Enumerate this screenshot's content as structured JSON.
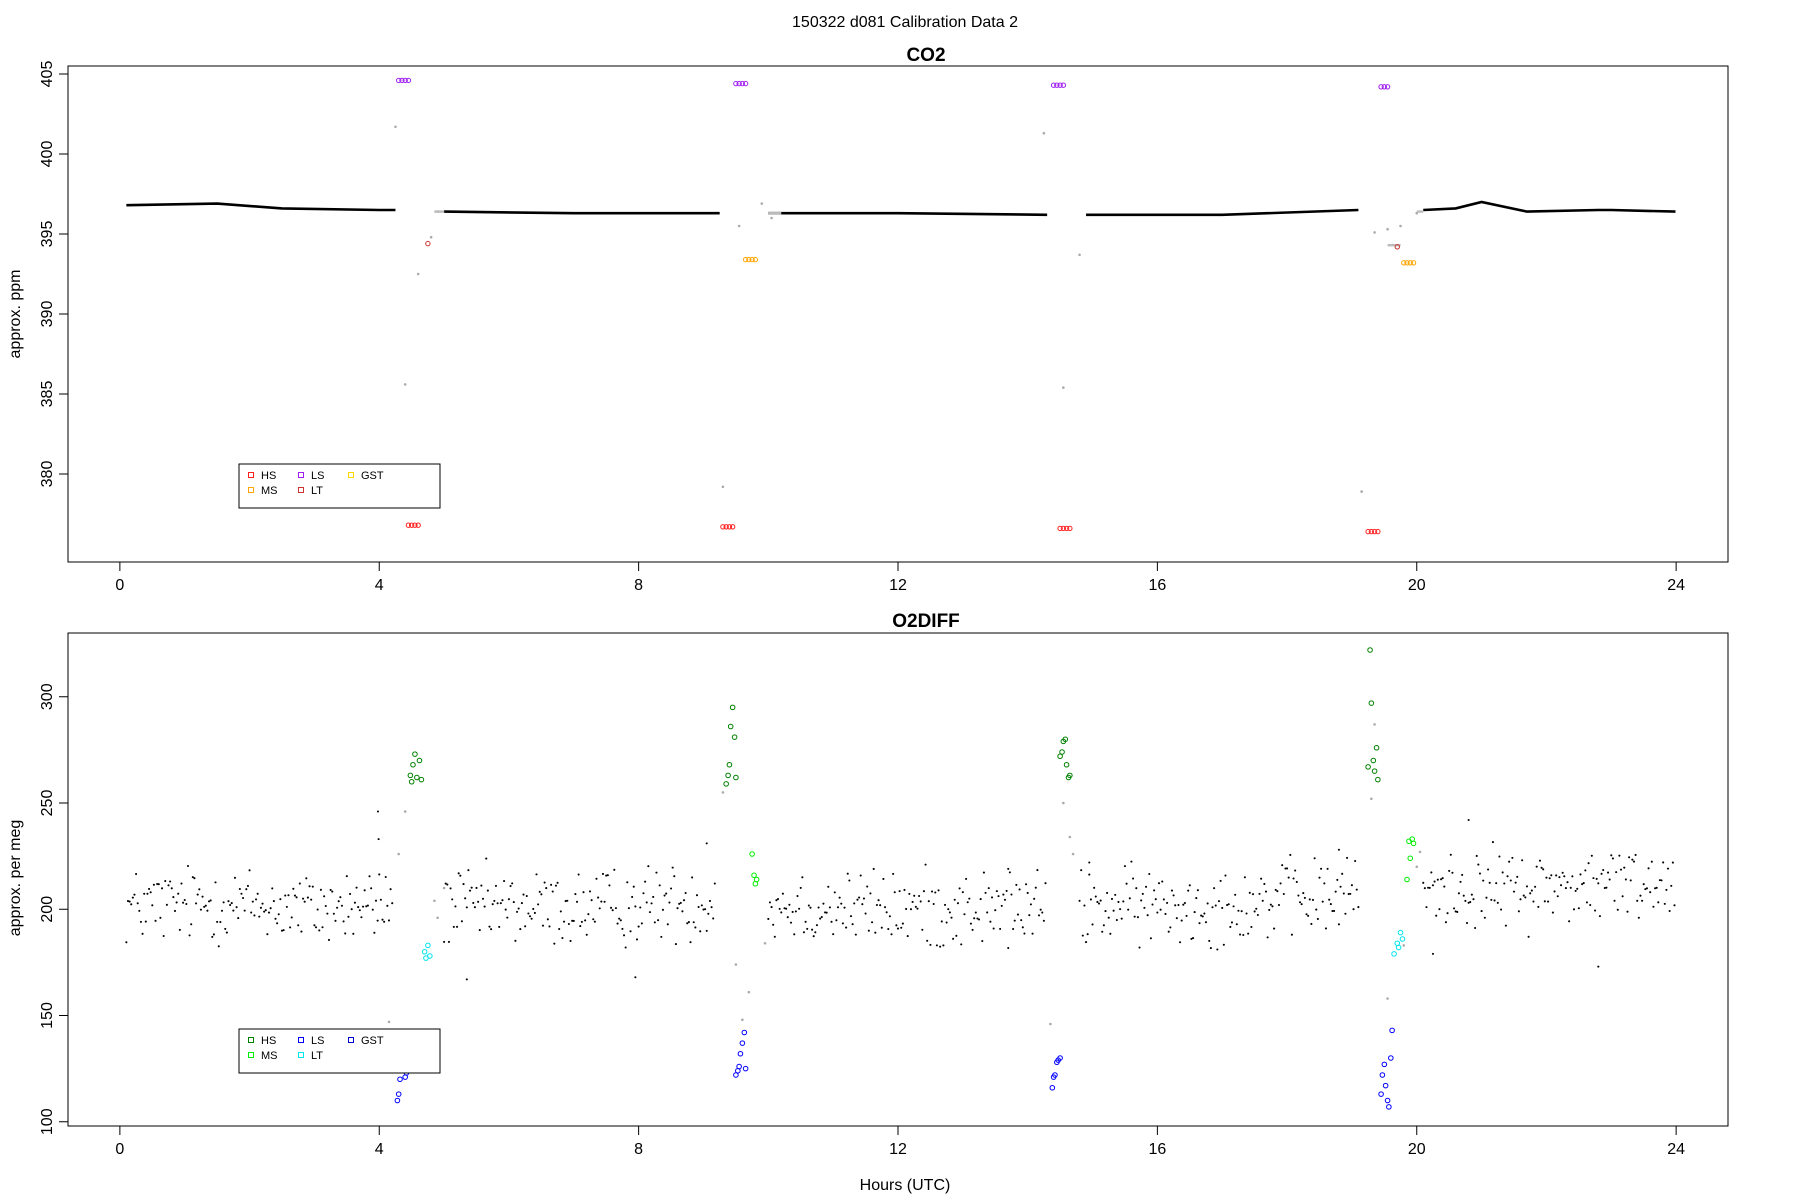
{
  "figure": {
    "title": "150322   d081   Calibration Data 2"
  },
  "chart_data": [
    {
      "type": "scatter",
      "title": "CO2",
      "xlabel": "",
      "ylabel": "approx. ppm",
      "xlim": [
        -0.8,
        24.8
      ],
      "ylim": [
        374.5,
        405.5
      ],
      "xticks": [
        0,
        4,
        8,
        12,
        16,
        20,
        24
      ],
      "yticks": [
        380,
        385,
        390,
        395,
        400,
        405
      ],
      "legend": {
        "position": "bottom-left",
        "entries": [
          {
            "name": "HS",
            "color": "#ff2020"
          },
          {
            "name": "MS",
            "color": "#ffa500"
          },
          {
            "name": "LS",
            "color": "#a020f0"
          },
          {
            "name": "LT",
            "color": "#cd3333"
          },
          {
            "name": "GST",
            "color": "#ffd700"
          }
        ]
      },
      "ambient": {
        "color": "#000000",
        "segments": [
          {
            "x": [
              0.1,
              1.5,
              2.5,
              4.0,
              4.25
            ],
            "y": [
              396.8,
              396.9,
              396.6,
              396.5,
              396.5
            ]
          },
          {
            "x": [
              5.0,
              7.0,
              9.25
            ],
            "y": [
              396.4,
              396.3,
              396.3
            ]
          },
          {
            "x": [
              10.0,
              12.0,
              14.3
            ],
            "y": [
              396.3,
              396.3,
              396.2
            ]
          },
          {
            "x": [
              14.9,
              17.0,
              19.1
            ],
            "y": [
              396.2,
              396.2,
              396.5
            ]
          },
          {
            "x": [
              20.1,
              20.6,
              21.0,
              21.7,
              22.8,
              23.0,
              23.99
            ],
            "y": [
              396.5,
              396.6,
              397.0,
              396.4,
              396.5,
              396.5,
              396.4
            ]
          }
        ]
      },
      "gray_points": [
        {
          "x": 4.25,
          "y": 401.7
        },
        {
          "x": 4.4,
          "y": 385.6
        },
        {
          "x": 4.6,
          "y": 392.5
        },
        {
          "x": 4.8,
          "y": 394.8
        },
        {
          "x": 4.9,
          "y": 396.4
        },
        {
          "x": 9.3,
          "y": 379.2
        },
        {
          "x": 9.55,
          "y": 395.5
        },
        {
          "x": 9.9,
          "y": 396.9
        },
        {
          "x": 10.05,
          "y": 396.0
        },
        {
          "x": 14.25,
          "y": 401.3
        },
        {
          "x": 14.55,
          "y": 385.4
        },
        {
          "x": 14.8,
          "y": 393.7
        },
        {
          "x": 19.15,
          "y": 378.9
        },
        {
          "x": 19.35,
          "y": 395.1
        },
        {
          "x": 19.55,
          "y": 395.3
        },
        {
          "x": 19.75,
          "y": 395.5
        },
        {
          "x": 20.0,
          "y": 396.3
        }
      ],
      "series": [
        {
          "name": "HS",
          "color": "#ff2020",
          "points": [
            {
              "x": 4.45,
              "y": 376.8
            },
            {
              "x": 4.5,
              "y": 376.8
            },
            {
              "x": 4.55,
              "y": 376.8
            },
            {
              "x": 4.6,
              "y": 376.8
            },
            {
              "x": 9.3,
              "y": 376.7
            },
            {
              "x": 9.35,
              "y": 376.7
            },
            {
              "x": 9.4,
              "y": 376.7
            },
            {
              "x": 9.45,
              "y": 376.7
            },
            {
              "x": 14.5,
              "y": 376.6
            },
            {
              "x": 14.55,
              "y": 376.6
            },
            {
              "x": 14.6,
              "y": 376.6
            },
            {
              "x": 14.65,
              "y": 376.6
            },
            {
              "x": 19.25,
              "y": 376.4
            },
            {
              "x": 19.3,
              "y": 376.4
            },
            {
              "x": 19.35,
              "y": 376.4
            },
            {
              "x": 19.4,
              "y": 376.4
            }
          ]
        },
        {
          "name": "MS",
          "color": "#ffa500",
          "points": [
            {
              "x": 9.65,
              "y": 393.4
            },
            {
              "x": 9.7,
              "y": 393.4
            },
            {
              "x": 9.75,
              "y": 393.4
            },
            {
              "x": 9.8,
              "y": 393.4
            },
            {
              "x": 19.8,
              "y": 393.2
            },
            {
              "x": 19.85,
              "y": 393.2
            },
            {
              "x": 19.9,
              "y": 393.2
            },
            {
              "x": 19.95,
              "y": 393.2
            }
          ]
        },
        {
          "name": "LS",
          "color": "#a020f0",
          "points": [
            {
              "x": 4.3,
              "y": 404.6
            },
            {
              "x": 4.35,
              "y": 404.6
            },
            {
              "x": 4.4,
              "y": 404.6
            },
            {
              "x": 4.45,
              "y": 404.6
            },
            {
              "x": 9.5,
              "y": 404.4
            },
            {
              "x": 9.55,
              "y": 404.4
            },
            {
              "x": 9.6,
              "y": 404.4
            },
            {
              "x": 9.65,
              "y": 404.4
            },
            {
              "x": 14.4,
              "y": 404.3
            },
            {
              "x": 14.45,
              "y": 404.3
            },
            {
              "x": 14.5,
              "y": 404.3
            },
            {
              "x": 14.55,
              "y": 404.3
            },
            {
              "x": 19.45,
              "y": 404.2
            },
            {
              "x": 19.5,
              "y": 404.2
            },
            {
              "x": 19.55,
              "y": 404.2
            }
          ]
        },
        {
          "name": "LT",
          "color": "#cd3333",
          "points": [
            {
              "x": 4.75,
              "y": 394.4
            },
            {
              "x": 19.7,
              "y": 394.2
            }
          ]
        },
        {
          "name": "GST",
          "color": "#ffd700",
          "points": []
        }
      ]
    },
    {
      "type": "scatter",
      "title": "O2DIFF",
      "xlabel": "Hours (UTC)",
      "ylabel": "approx. per meg",
      "xlim": [
        -0.8,
        24.8
      ],
      "ylim": [
        98,
        330
      ],
      "xticks": [
        0,
        4,
        8,
        12,
        16,
        20,
        24
      ],
      "yticks": [
        100,
        150,
        200,
        250,
        300
      ],
      "legend": {
        "position": "bottom-left",
        "entries": [
          {
            "name": "HS",
            "color": "#008000"
          },
          {
            "name": "MS",
            "color": "#00ee00"
          },
          {
            "name": "LS",
            "color": "#0000ff"
          },
          {
            "name": "LT",
            "color": "#00e5ee"
          },
          {
            "name": "GST",
            "color": "#0000cd"
          }
        ]
      },
      "ambient": {
        "color": "#000000",
        "noise": 9,
        "segments": [
          {
            "x": [
              0.1,
              1.5,
              3.0,
              4.2
            ],
            "y": [
              201,
              203,
              200,
              202
            ]
          },
          {
            "x": [
              5.0,
              7.0,
              9.2
            ],
            "y": [
              201,
              200,
              204
            ]
          },
          {
            "x": [
              10.0,
              12.0,
              14.3
            ],
            "y": [
              202,
              200,
              200
            ]
          },
          {
            "x": [
              14.8,
              17.0,
              19.1
            ],
            "y": [
              201,
              202,
              207
            ]
          },
          {
            "x": [
              20.1,
              22.0,
              23.99
            ],
            "y": [
              209,
              210,
              213
            ]
          }
        ],
        "outliers": [
          {
            "x": 3.98,
            "y": 246
          },
          {
            "x": 3.99,
            "y": 233
          },
          {
            "x": 9.05,
            "y": 231
          },
          {
            "x": 18.8,
            "y": 228
          },
          {
            "x": 20.8,
            "y": 242
          },
          {
            "x": 22.8,
            "y": 173
          },
          {
            "x": 5.35,
            "y": 167
          },
          {
            "x": 7.95,
            "y": 168
          },
          {
            "x": 20.25,
            "y": 179
          },
          {
            "x": 13.7,
            "y": 219
          },
          {
            "x": 14.95,
            "y": 222
          }
        ]
      },
      "gray_points": [
        {
          "x": 4.3,
          "y": 226
        },
        {
          "x": 4.4,
          "y": 246
        },
        {
          "x": 4.15,
          "y": 147
        },
        {
          "x": 4.85,
          "y": 204
        },
        {
          "x": 4.9,
          "y": 196
        },
        {
          "x": 5.0,
          "y": 210
        },
        {
          "x": 9.3,
          "y": 255
        },
        {
          "x": 9.5,
          "y": 174
        },
        {
          "x": 9.6,
          "y": 148
        },
        {
          "x": 9.7,
          "y": 161
        },
        {
          "x": 9.95,
          "y": 184
        },
        {
          "x": 14.35,
          "y": 146
        },
        {
          "x": 14.55,
          "y": 250
        },
        {
          "x": 14.65,
          "y": 234
        },
        {
          "x": 14.7,
          "y": 226
        },
        {
          "x": 19.3,
          "y": 252
        },
        {
          "x": 19.35,
          "y": 287
        },
        {
          "x": 19.55,
          "y": 158
        },
        {
          "x": 19.8,
          "y": 183
        },
        {
          "x": 20.0,
          "y": 220
        },
        {
          "x": 20.05,
          "y": 227
        }
      ],
      "series": [
        {
          "name": "HS",
          "color": "#008000",
          "points": [
            {
              "x": 4.48,
              "y": 263
            },
            {
              "x": 4.5,
              "y": 260
            },
            {
              "x": 4.52,
              "y": 268
            },
            {
              "x": 4.55,
              "y": 273
            },
            {
              "x": 4.58,
              "y": 262
            },
            {
              "x": 4.62,
              "y": 270
            },
            {
              "x": 4.65,
              "y": 261
            },
            {
              "x": 9.35,
              "y": 259
            },
            {
              "x": 9.38,
              "y": 263
            },
            {
              "x": 9.4,
              "y": 268
            },
            {
              "x": 9.42,
              "y": 286
            },
            {
              "x": 9.45,
              "y": 295
            },
            {
              "x": 9.48,
              "y": 281
            },
            {
              "x": 9.5,
              "y": 262
            },
            {
              "x": 14.5,
              "y": 272
            },
            {
              "x": 14.53,
              "y": 274
            },
            {
              "x": 14.55,
              "y": 279
            },
            {
              "x": 14.58,
              "y": 280
            },
            {
              "x": 14.6,
              "y": 268
            },
            {
              "x": 14.63,
              "y": 262
            },
            {
              "x": 14.65,
              "y": 263
            },
            {
              "x": 19.25,
              "y": 267
            },
            {
              "x": 19.28,
              "y": 322
            },
            {
              "x": 19.3,
              "y": 297
            },
            {
              "x": 19.33,
              "y": 270
            },
            {
              "x": 19.35,
              "y": 265
            },
            {
              "x": 19.38,
              "y": 276
            },
            {
              "x": 19.4,
              "y": 261
            }
          ]
        },
        {
          "name": "MS",
          "color": "#00ee00",
          "points": [
            {
              "x": 9.75,
              "y": 226
            },
            {
              "x": 9.78,
              "y": 216
            },
            {
              "x": 9.8,
              "y": 212
            },
            {
              "x": 9.82,
              "y": 214
            },
            {
              "x": 19.85,
              "y": 214
            },
            {
              "x": 19.88,
              "y": 232
            },
            {
              "x": 19.9,
              "y": 224
            },
            {
              "x": 19.93,
              "y": 233
            },
            {
              "x": 19.95,
              "y": 231
            }
          ]
        },
        {
          "name": "LS",
          "color": "#0000ff",
          "points": [
            {
              "x": 4.28,
              "y": 110
            },
            {
              "x": 4.3,
              "y": 113
            },
            {
              "x": 4.32,
              "y": 120
            },
            {
              "x": 4.4,
              "y": 121
            },
            {
              "x": 4.42,
              "y": 123
            },
            {
              "x": 9.5,
              "y": 122
            },
            {
              "x": 9.53,
              "y": 124
            },
            {
              "x": 9.55,
              "y": 126
            },
            {
              "x": 9.57,
              "y": 132
            },
            {
              "x": 9.6,
              "y": 137
            },
            {
              "x": 9.63,
              "y": 142
            },
            {
              "x": 9.65,
              "y": 125
            },
            {
              "x": 14.38,
              "y": 116
            },
            {
              "x": 14.4,
              "y": 121
            },
            {
              "x": 14.42,
              "y": 122
            },
            {
              "x": 14.45,
              "y": 128
            },
            {
              "x": 14.47,
              "y": 129
            },
            {
              "x": 14.5,
              "y": 130
            },
            {
              "x": 19.45,
              "y": 113
            },
            {
              "x": 19.47,
              "y": 122
            },
            {
              "x": 19.5,
              "y": 127
            },
            {
              "x": 19.52,
              "y": 117
            },
            {
              "x": 19.55,
              "y": 110
            },
            {
              "x": 19.57,
              "y": 107
            },
            {
              "x": 19.6,
              "y": 130
            },
            {
              "x": 19.62,
              "y": 143
            }
          ]
        },
        {
          "name": "LT",
          "color": "#00e5ee",
          "points": [
            {
              "x": 4.7,
              "y": 180
            },
            {
              "x": 4.72,
              "y": 177
            },
            {
              "x": 4.75,
              "y": 183
            },
            {
              "x": 4.78,
              "y": 178
            },
            {
              "x": 19.65,
              "y": 179
            },
            {
              "x": 19.7,
              "y": 184
            },
            {
              "x": 19.72,
              "y": 182
            },
            {
              "x": 19.75,
              "y": 189
            },
            {
              "x": 19.78,
              "y": 186
            }
          ]
        },
        {
          "name": "GST",
          "color": "#0000cd",
          "points": []
        }
      ]
    }
  ]
}
